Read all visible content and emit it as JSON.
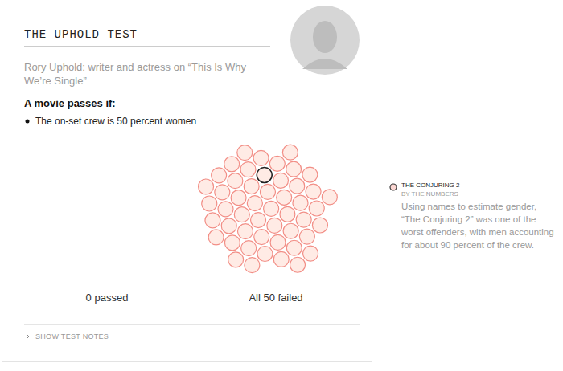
{
  "chart_data": {
    "type": "packed_circles",
    "title": "THE UPHOLD TEST",
    "subtitle": "Rory Uphold: writer and actress on “This Is Why We’re Single”",
    "criteria_heading": "A movie passes if:",
    "criteria": [
      "The on-set crew is 50 percent women"
    ],
    "series": [
      {
        "name": "0 passed",
        "value": 0
      },
      {
        "name": "All 50 failed",
        "value": 50,
        "color": "#f28e86"
      }
    ],
    "annotation": {
      "title": "THE CONJURING 2",
      "subtitle": "BY THE NUMBERS",
      "text": "Using names to estimate gender, “The Conjuring 2” was one of the worst offenders, with men accounting for about 90 percent of the crew."
    },
    "notes_toggle": "SHOW TEST NOTES"
  }
}
